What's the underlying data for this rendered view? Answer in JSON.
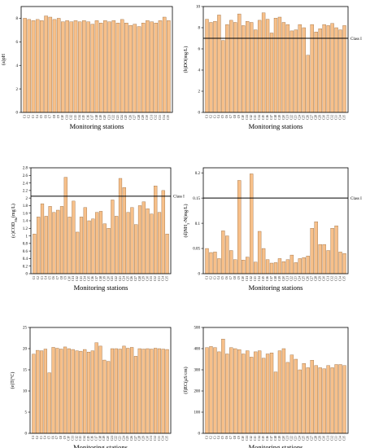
{
  "chart_data": [
    {
      "type": "bar",
      "categories": [
        "C1",
        "C2",
        "C3",
        "C4",
        "C5",
        "C6",
        "C7",
        "C8",
        "C9",
        "C10",
        "C11",
        "C12",
        "C13",
        "C14",
        "C15",
        "C16",
        "C17",
        "C18",
        "C19",
        "C20",
        "C21",
        "C22",
        "C23",
        "C24",
        "C25",
        "C26",
        "C27",
        "C28",
        "C29",
        "C30",
        "C31",
        "C32",
        "C33",
        "C34",
        "C35"
      ],
      "values": [
        8.0,
        7.9,
        7.8,
        7.9,
        7.8,
        8.2,
        8.1,
        7.9,
        8.0,
        7.7,
        7.8,
        7.7,
        7.8,
        7.7,
        7.8,
        7.7,
        7.5,
        7.8,
        7.6,
        7.8,
        7.7,
        7.8,
        7.6,
        7.9,
        7.6,
        7.4,
        7.5,
        7.3,
        7.6,
        7.8,
        7.7,
        7.6,
        7.8,
        8.1,
        7.8
      ],
      "ylabel": "(a)pH",
      "xlabel": "",
      "ylim": [
        0,
        9
      ],
      "yticks": [
        0,
        2,
        4,
        6,
        8
      ]
    },
    {
      "type": "bar",
      "categories": [
        "C1",
        "C2",
        "C3",
        "C4",
        "C5",
        "C6",
        "C7",
        "C8",
        "C9",
        "C10",
        "C11",
        "C12",
        "C13",
        "C14",
        "C15",
        "C16",
        "C17",
        "C18",
        "C19",
        "C20",
        "C21",
        "C22",
        "C23",
        "C24",
        "C25",
        "C26",
        "C27",
        "C28",
        "C29",
        "C30",
        "C31",
        "C32",
        "C33",
        "C34",
        "C35"
      ],
      "values": [
        8.8,
        8.5,
        8.6,
        9.2,
        6.8,
        8.3,
        8.7,
        8.5,
        9.3,
        8.2,
        8.6,
        8.5,
        7.8,
        8.7,
        9.4,
        8.8,
        7.5,
        8.9,
        9.0,
        8.5,
        8.3,
        7.7,
        7.8,
        8.3,
        8.0,
        5.4,
        8.3,
        7.6,
        7.9,
        8.3,
        8.2,
        8.4,
        8.0,
        7.8,
        8.2
      ],
      "ylabel": "(b)DO(mg/L)",
      "xlabel": "",
      "ylim": [
        0,
        10
      ],
      "yticks": [
        0,
        2,
        4,
        6,
        8,
        10
      ],
      "reference": {
        "value": 7.0,
        "label": "Class I"
      }
    },
    {
      "type": "bar",
      "categories": [
        "C1",
        "C2",
        "C3",
        "C4",
        "C5",
        "C6",
        "C7",
        "C8",
        "C9",
        "C10",
        "C11",
        "C12",
        "C13",
        "C14",
        "C15",
        "C16",
        "C17",
        "C18",
        "C19",
        "C20",
        "C21",
        "C22",
        "C23",
        "C24",
        "C25",
        "C26",
        "C27",
        "C28",
        "C29",
        "C30",
        "C31",
        "C32",
        "C33",
        "C34",
        "C35"
      ],
      "values": [
        1.05,
        1.5,
        1.85,
        1.52,
        1.78,
        1.62,
        1.68,
        1.78,
        2.55,
        1.5,
        1.92,
        1.1,
        1.5,
        1.75,
        1.4,
        1.45,
        1.62,
        1.65,
        1.32,
        1.2,
        1.95,
        1.52,
        2.52,
        2.28,
        1.62,
        1.75,
        1.3,
        1.8,
        1.9,
        1.72,
        1.58,
        2.32,
        1.62,
        2.2,
        1.05
      ],
      "ylabel": "(c)COD_Mn(mg/L)",
      "xlabel": "",
      "ylim": [
        0,
        2.8
      ],
      "yticks": [
        0,
        0.2,
        0.4,
        0.6,
        0.8,
        1.0,
        1.2,
        1.4,
        1.6,
        1.8,
        2.0,
        2.2,
        2.4,
        2.6,
        2.8
      ],
      "reference": {
        "value": 2.05,
        "label": "Class I"
      }
    },
    {
      "type": "bar",
      "categories": [
        "C1",
        "C2",
        "C3",
        "C4",
        "C5",
        "C6",
        "C7",
        "C8",
        "C9",
        "C10",
        "C11",
        "C12",
        "C13",
        "C14",
        "C15",
        "C16",
        "C17",
        "C18",
        "C19",
        "C20",
        "C21",
        "C22",
        "C23",
        "C24",
        "C25",
        "C26",
        "C27",
        "C28",
        "C29",
        "C30",
        "C31",
        "C32",
        "C33",
        "C34",
        "C35"
      ],
      "values": [
        0.05,
        0.042,
        0.043,
        0.03,
        0.085,
        0.075,
        0.046,
        0.028,
        0.185,
        0.027,
        0.033,
        0.198,
        0.023,
        0.084,
        0.05,
        0.028,
        0.021,
        0.022,
        0.03,
        0.024,
        0.028,
        0.037,
        0.022,
        0.03,
        0.032,
        0.035,
        0.09,
        0.103,
        0.058,
        0.058,
        0.046,
        0.09,
        0.095,
        0.043,
        0.04
      ],
      "ylabel": "(d)NH3-N(mg/L)",
      "xlabel": "",
      "ylim": [
        0,
        0.21
      ],
      "yticks": [
        0,
        0.05,
        0.1,
        0.15,
        0.2
      ],
      "reference": {
        "value": 0.15,
        "label": "Class I"
      }
    },
    {
      "type": "bar",
      "categories": [
        "C1",
        "C2",
        "C3",
        "C4",
        "C5",
        "C6",
        "C7",
        "C8",
        "C9",
        "C10",
        "C11",
        "C12",
        "C13",
        "C14",
        "C15",
        "C16",
        "C17",
        "C18",
        "C19",
        "C20",
        "C21",
        "C22",
        "C23",
        "C24",
        "C25",
        "C26",
        "C27",
        "C28",
        "C29",
        "C30",
        "C31",
        "C32",
        "C33",
        "C34",
        "C35"
      ],
      "values": [
        18.7,
        19.6,
        19.5,
        19.9,
        14.3,
        20.3,
        20.1,
        19.9,
        20.4,
        20.0,
        19.8,
        19.5,
        19.4,
        19.8,
        19.2,
        19.5,
        21.4,
        20.6,
        17.3,
        17.0,
        20.0,
        20.0,
        19.9,
        20.6,
        20.1,
        20.3,
        18.2,
        20.0,
        19.9,
        20.0,
        19.9,
        20.1,
        20.0,
        19.9,
        19.8
      ],
      "ylabel": "(e)T(°C)",
      "xlabel": "",
      "ylim": [
        0,
        25
      ],
      "yticks": [
        0,
        5,
        10,
        15,
        20,
        25
      ]
    },
    {
      "type": "bar",
      "categories": [
        "C1",
        "C2",
        "C3",
        "C4",
        "C5",
        "C6",
        "C7",
        "C8",
        "C9",
        "C10",
        "C11",
        "C12",
        "C13",
        "C14",
        "C15",
        "C16",
        "C17",
        "C18",
        "C19",
        "C20",
        "C21",
        "C22",
        "C23",
        "C24",
        "C25",
        "C26",
        "C27",
        "C28",
        "C29",
        "C30",
        "C31",
        "C32",
        "C33",
        "C34",
        "C35"
      ],
      "values": [
        405,
        410,
        405,
        385,
        445,
        375,
        405,
        400,
        395,
        375,
        390,
        360,
        385,
        390,
        355,
        375,
        380,
        290,
        390,
        400,
        335,
        370,
        350,
        300,
        330,
        310,
        345,
        320,
        310,
        305,
        320,
        310,
        325,
        325,
        320
      ],
      "ylabel": "(f)EC(μS/cm)",
      "xlabel": "",
      "ylim": [
        0,
        500
      ],
      "yticks": [
        0,
        100,
        200,
        300,
        400,
        500
      ]
    }
  ],
  "panel_xlabels": [
    "Monitoring stations",
    "Monitoring stations",
    "Monitoring stations",
    "Monitoring stations",
    "Monitoring stations",
    "Monitoring stations"
  ],
  "colors": {
    "bar_fill": "#f7c08a",
    "bar_stroke": "#8a5a2b"
  }
}
